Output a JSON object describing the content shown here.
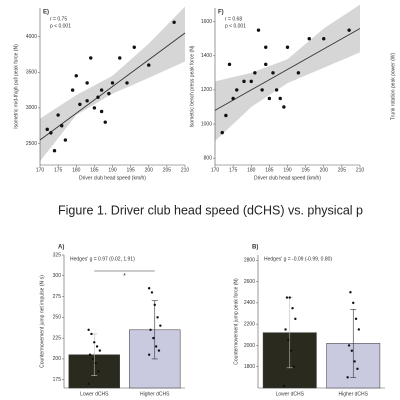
{
  "caption": "Figure 1. Driver club head speed (dCHS) vs. physical p",
  "chart_data": [
    {
      "type": "scatter",
      "panel": "E)",
      "annotation": [
        "r = 0.75",
        "p < 0.001"
      ],
      "x_label": "Driver club head speed (km/h)",
      "y_label": "Isometric mid-thigh pull peak force (N)",
      "xlim": [
        170,
        210
      ],
      "xticks": [
        170,
        175,
        180,
        185,
        190,
        195,
        200,
        205,
        210
      ],
      "ylim": [
        2200,
        4400
      ],
      "yticks": [
        2500,
        3000,
        3500,
        4000
      ],
      "series": [
        {
          "color": "#111111",
          "x": [
            172,
            173,
            174,
            175,
            176,
            177,
            179,
            180,
            181,
            183,
            183,
            184,
            185,
            186,
            187,
            187,
            188,
            189,
            190,
            192,
            194,
            196,
            200,
            207
          ],
          "values": [
            2700,
            2650,
            2400,
            2900,
            2750,
            2550,
            3250,
            3450,
            3050,
            3100,
            3350,
            3700,
            3000,
            3150,
            3250,
            2950,
            2800,
            3200,
            3350,
            3700,
            3350,
            3850,
            3600,
            4200
          ]
        }
      ],
      "trend": {
        "x": [
          170,
          210
        ],
        "values": [
          2550,
          4050
        ]
      },
      "ci": {
        "x": [
          170,
          180,
          190,
          200,
          210
        ],
        "lower": [
          2250,
          2900,
          3200,
          3420,
          3650
        ],
        "upper": [
          2850,
          3180,
          3450,
          3900,
          4420
        ]
      }
    },
    {
      "type": "scatter",
      "panel": "F)",
      "annotation": [
        "r = 0.68",
        "p < 0.001"
      ],
      "x_label": "Driver club head speed (km/h)",
      "y_label": "Isometric bench press peak force (N)",
      "xlim": [
        170,
        210
      ],
      "xticks": [
        170,
        175,
        180,
        185,
        190,
        195,
        200,
        205,
        210
      ],
      "ylim": [
        760,
        1680
      ],
      "yticks": [
        800,
        1000,
        1200,
        1400,
        1600
      ],
      "series": [
        {
          "color": "#111111",
          "x": [
            172,
            173,
            174,
            175,
            176,
            178,
            180,
            181,
            182,
            183,
            184,
            184,
            185,
            186,
            187,
            188,
            189,
            190,
            193,
            196,
            200,
            207
          ],
          "values": [
            950,
            1050,
            1350,
            1150,
            1200,
            1250,
            1250,
            1300,
            1550,
            1200,
            1350,
            1450,
            1150,
            1300,
            1200,
            1150,
            1100,
            1450,
            1300,
            1500,
            1500,
            1550
          ]
        }
      ],
      "trend": {
        "x": [
          170,
          210
        ],
        "values": [
          1080,
          1560
        ]
      },
      "ci": {
        "x": [
          170,
          180,
          190,
          200,
          210
        ],
        "lower": [
          900,
          1100,
          1240,
          1330,
          1420
        ],
        "upper": [
          1250,
          1300,
          1380,
          1560,
          1700
        ]
      }
    },
    {
      "type": "scatter",
      "y_label": "Trunk rotation peak power (W)"
    },
    {
      "type": "bar",
      "panel": "A)",
      "annotation": "Hedges' g = 0.97 (0.02, 1.91)",
      "significance": "*",
      "y_label": "Countermovement jump net impulse (N·s)",
      "categories": [
        "Lower dCHS",
        "Higher dCHS"
      ],
      "values": [
        205,
        235
      ],
      "errors": [
        25,
        35
      ],
      "colors": [
        "#2b2a1f",
        "#c9c9e0"
      ],
      "points": [
        [
          170,
          185,
          195,
          200,
          205,
          210,
          215,
          220,
          230,
          235
        ],
        [
          205,
          210,
          215,
          225,
          235,
          240,
          250,
          265,
          280,
          285
        ]
      ],
      "ylim": [
        165,
        325
      ],
      "yticks": [
        175,
        200,
        225,
        250,
        275,
        300,
        325
      ]
    },
    {
      "type": "bar",
      "panel": "B)",
      "annotation": "Hedges' g = -0.09 (-0.99, 0.80)",
      "y_label": "Countermovement jump peak force (N)",
      "categories": [
        "Lower dCHS",
        "Higher dCHS"
      ],
      "values": [
        2120,
        2020
      ],
      "errors": [
        330,
        320
      ],
      "colors": [
        "#2b2a1f",
        "#c9c9e0"
      ],
      "points": [
        [
          1620,
          1800,
          1950,
          2050,
          2150,
          2250,
          2350,
          2450,
          2450
        ],
        [
          1700,
          1780,
          1850,
          1950,
          2000,
          2150,
          2250,
          2400,
          2500
        ]
      ],
      "ylim": [
        1600,
        2850
      ],
      "yticks": [
        1800,
        2000,
        2200,
        2400,
        2600,
        2800
      ]
    }
  ]
}
